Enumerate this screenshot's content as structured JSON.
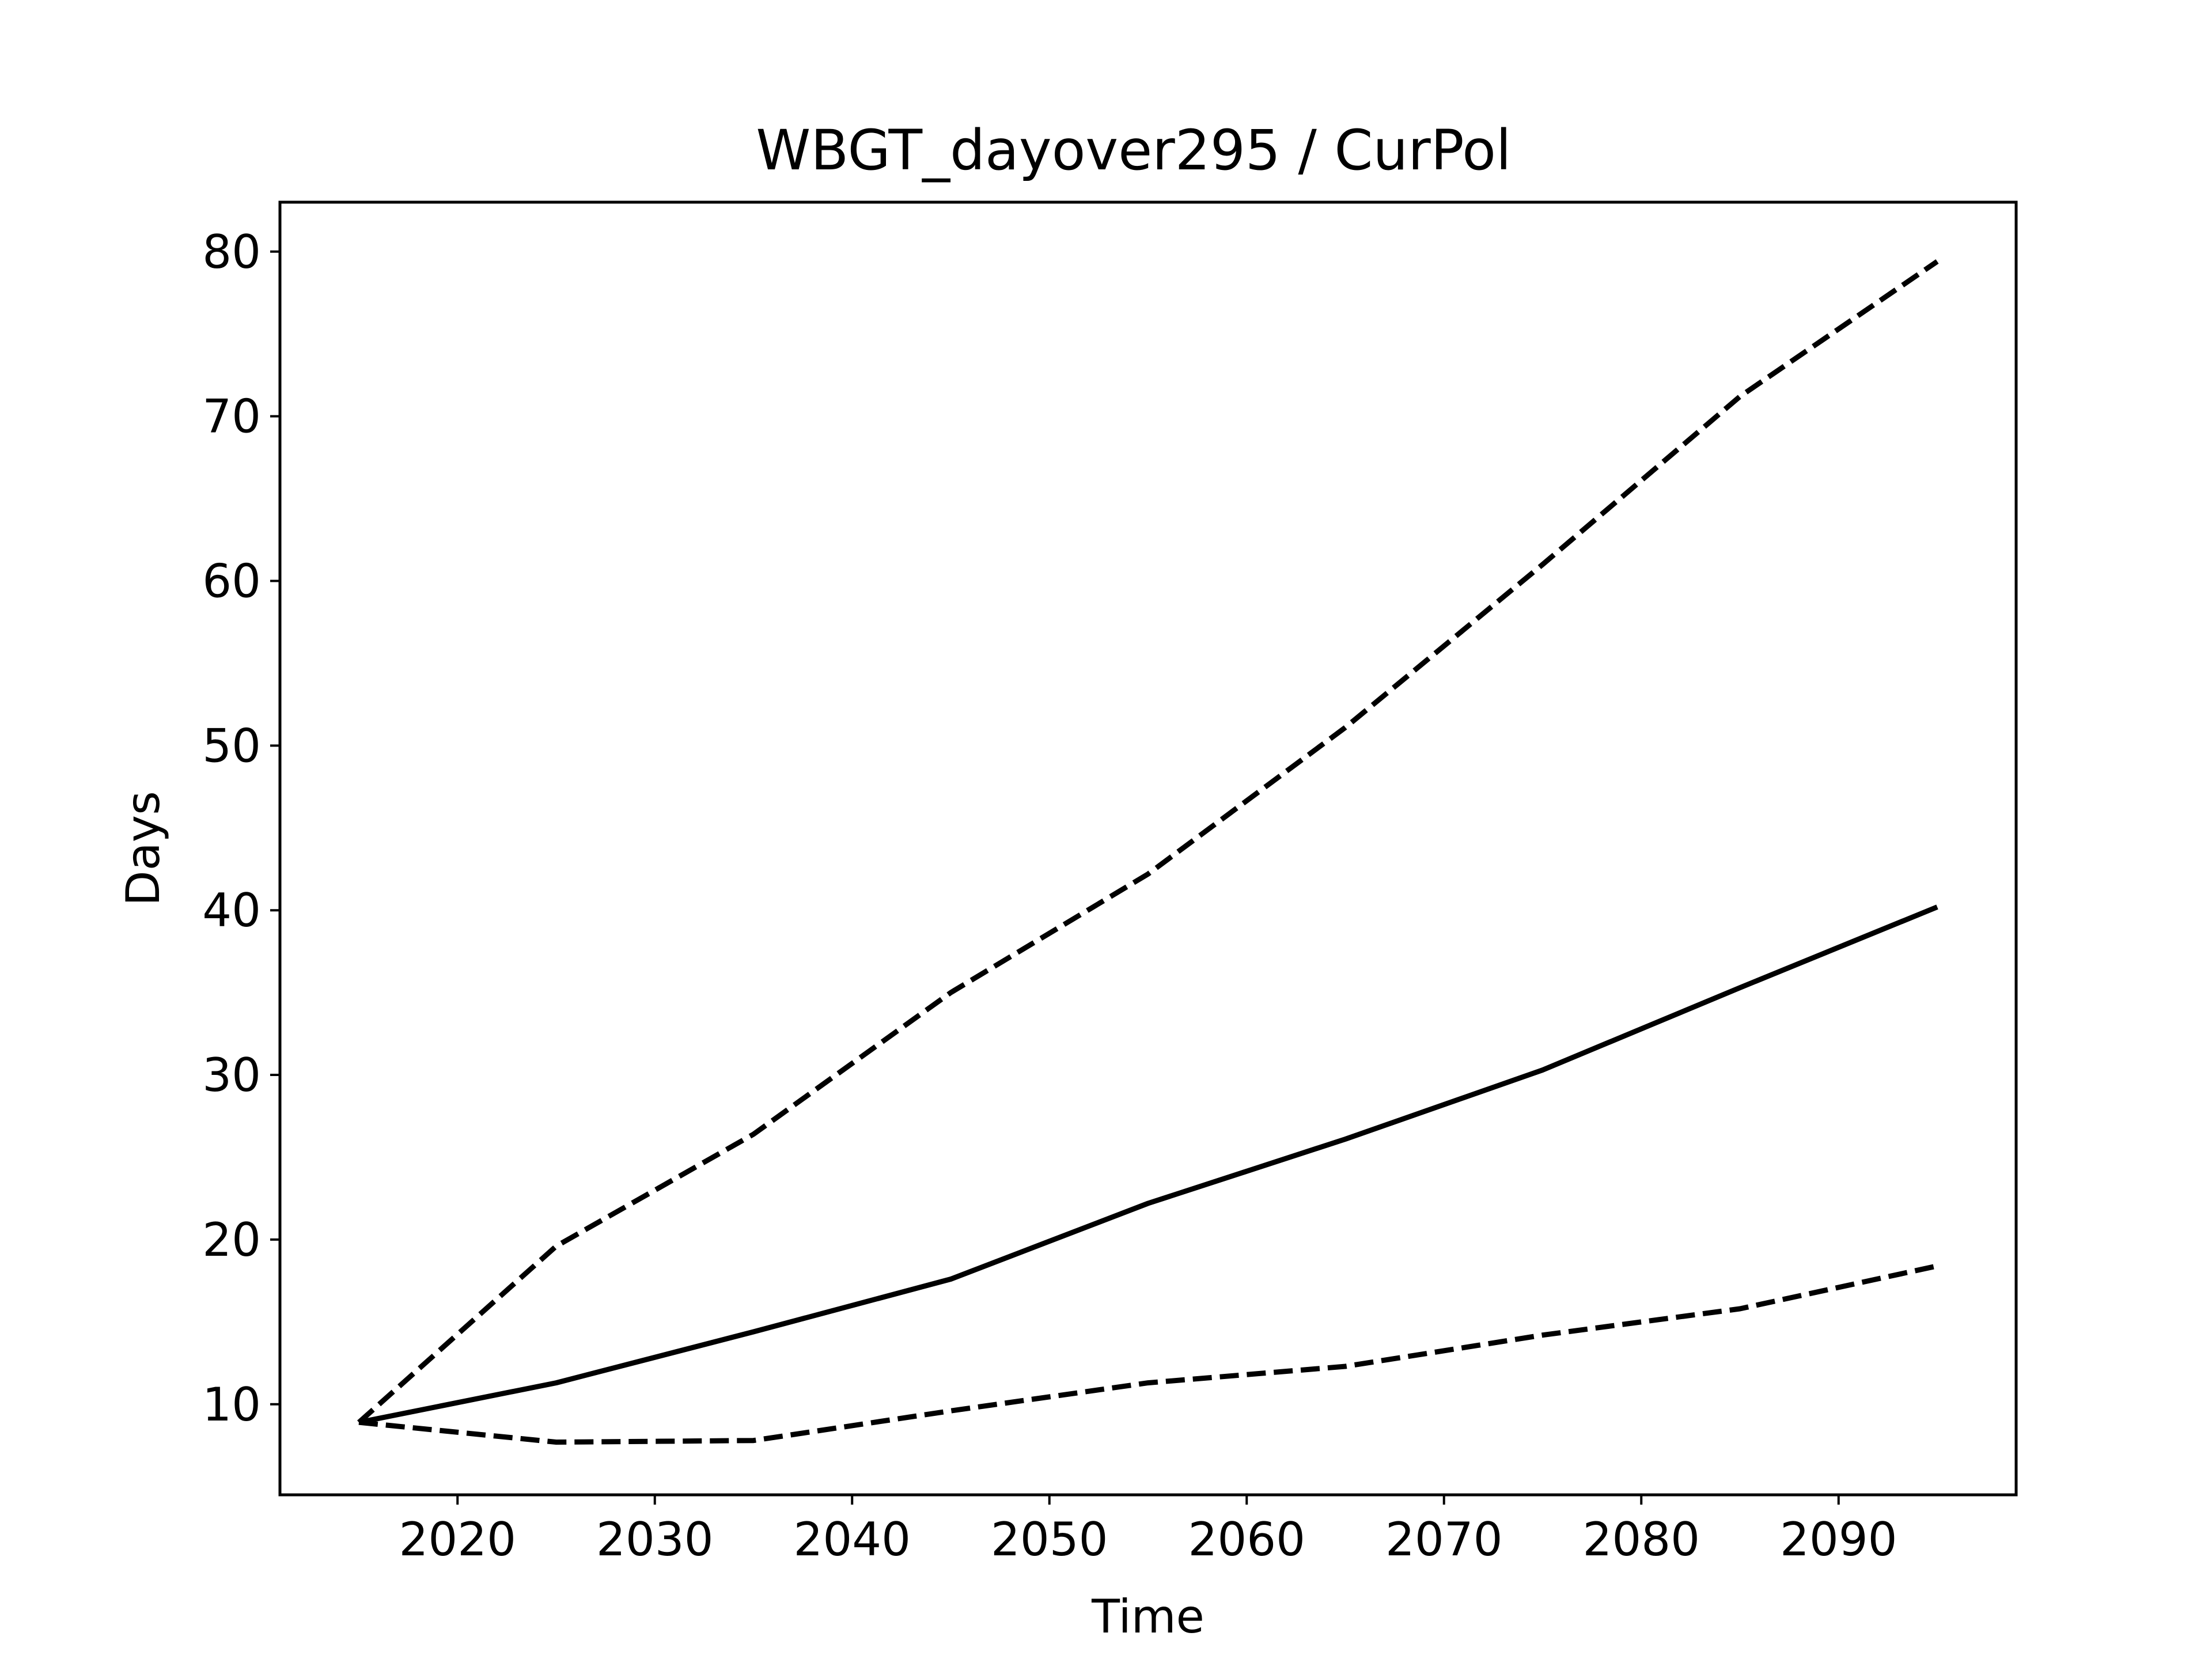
{
  "chart_data": {
    "type": "line",
    "title": "WBGT_dayover295 / CurPol",
    "xlabel": "Time",
    "ylabel": "Days",
    "xlim": [
      2011,
      2099
    ],
    "ylim": [
      4.5,
      83
    ],
    "xticks": [
      2020,
      2030,
      2040,
      2050,
      2060,
      2070,
      2080,
      2090
    ],
    "yticks": [
      10,
      20,
      30,
      40,
      50,
      60,
      70,
      80
    ],
    "grid": false,
    "legend": "none",
    "x": [
      2015,
      2025,
      2035,
      2045,
      2055,
      2065,
      2075,
      2085,
      2095
    ],
    "series": [
      {
        "style": "solid",
        "color": "#000000",
        "values": [
          8.9,
          11.3,
          14.4,
          17.6,
          22.2,
          26.1,
          30.3,
          35.3,
          40.2
        ]
      },
      {
        "style": "dashed",
        "color": "#000000",
        "values": [
          8.9,
          19.6,
          26.4,
          35.0,
          42.2,
          51.1,
          61.0,
          71.2,
          79.4
        ]
      },
      {
        "style": "dashed",
        "color": "#000000",
        "values": [
          8.9,
          7.7,
          7.8,
          9.6,
          11.3,
          12.3,
          14.2,
          15.8,
          18.4
        ]
      }
    ]
  }
}
